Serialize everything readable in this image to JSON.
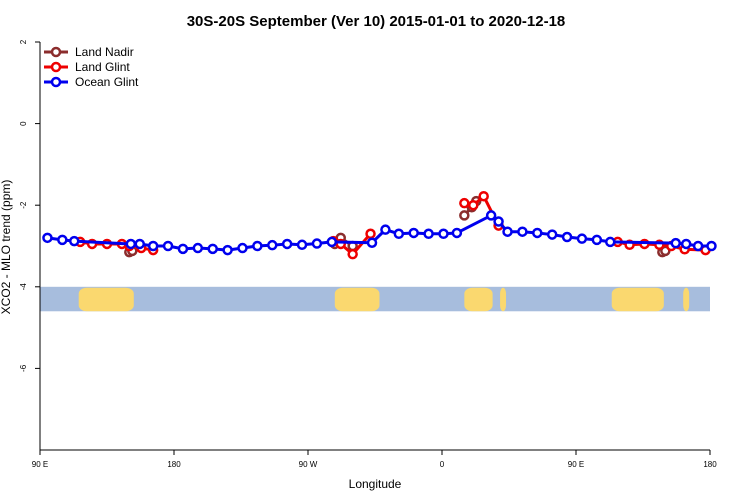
{
  "chart_data": {
    "type": "line",
    "title": "30S-20S September (Ver 10)   2015-01-01 to 2020-12-18",
    "xlabel": "Longitude",
    "ylabel": "XCO2 - MLO trend (ppm)",
    "xlim": [
      90,
      540
    ],
    "ylim": [
      -8,
      2
    ],
    "x_ticks": [
      {
        "value": 90,
        "label": "90 E"
      },
      {
        "value": 180,
        "label": "180"
      },
      {
        "value": 270,
        "label": "90 W"
      },
      {
        "value": 360,
        "label": "0"
      },
      {
        "value": 450,
        "label": "90 E"
      },
      {
        "value": 540,
        "label": "180"
      }
    ],
    "y_ticks": [
      {
        "value": 2,
        "label": "2"
      },
      {
        "value": 0,
        "label": "0"
      },
      {
        "value": -2,
        "label": "-2"
      },
      {
        "value": -4,
        "label": "-4"
      },
      {
        "value": -6,
        "label": "-6"
      }
    ],
    "legend": {
      "position": "top-left",
      "entries": [
        {
          "name": "Land Nadir",
          "color": "#8B2D2D"
        },
        {
          "name": "Land Glint",
          "color": "#EE0000"
        },
        {
          "name": "Ocean Glint",
          "color": "#0000EE"
        }
      ]
    },
    "map_strip": {
      "description_values": "land-ocean band between y -4 and -4.6",
      "y_top": -4.0,
      "y_bottom": -4.6,
      "ocean_color": "#A7BDDD",
      "land_color": "#FAD86F",
      "land_ranges": [
        [
          116,
          153
        ],
        [
          288,
          318
        ],
        [
          375,
          394
        ],
        [
          399,
          403
        ],
        [
          474,
          509
        ],
        [
          522,
          526
        ]
      ]
    },
    "series": [
      {
        "name": "Land Nadir",
        "color": "#8B2D2D",
        "segments": [
          [
            [
              150,
              -3.15
            ],
            [
              152,
              -3.12
            ]
          ],
          [
            [
              288,
              -2.95
            ],
            [
              292,
              -2.8
            ],
            [
              300,
              -3.0
            ]
          ],
          [
            [
              508,
              -3.15
            ],
            [
              510,
              -3.12
            ]
          ],
          [
            [
              375,
              -2.25
            ],
            [
              380,
              -2.05
            ],
            [
              383,
              -1.9
            ]
          ]
        ]
      },
      {
        "name": "Land Glint",
        "color": "#EE0000",
        "segments": [
          [
            [
              117,
              -2.9
            ],
            [
              125,
              -2.95
            ],
            [
              135,
              -2.95
            ],
            [
              145,
              -2.95
            ],
            [
              150,
              -3.0
            ],
            [
              158,
              -3.05
            ],
            [
              166,
              -3.1
            ]
          ],
          [
            [
              287,
              -2.88
            ],
            [
              292,
              -2.95
            ],
            [
              300,
              -3.2
            ],
            [
              312,
              -2.7
            ]
          ],
          [
            [
              375,
              -1.95
            ],
            [
              381,
              -2.0
            ],
            [
              388,
              -1.78
            ],
            [
              398,
              -2.5
            ]
          ],
          [
            [
              478,
              -2.9
            ],
            [
              486,
              -2.97
            ],
            [
              496,
              -2.95
            ],
            [
              506,
              -2.97
            ],
            [
              514,
              -3.0
            ],
            [
              523,
              -3.08
            ],
            [
              537,
              -3.1
            ]
          ]
        ]
      },
      {
        "name": "Ocean Glint",
        "color": "#0000EE",
        "segments": [
          [
            [
              95,
              -2.8
            ],
            [
              105,
              -2.85
            ],
            [
              113,
              -2.88
            ],
            [
              151,
              -2.95
            ],
            [
              157,
              -2.95
            ],
            [
              166,
              -3.0
            ],
            [
              176,
              -3.0
            ],
            [
              186,
              -3.07
            ],
            [
              196,
              -3.05
            ],
            [
              206,
              -3.07
            ],
            [
              216,
              -3.1
            ],
            [
              226,
              -3.05
            ],
            [
              236,
              -3.0
            ],
            [
              246,
              -2.98
            ],
            [
              256,
              -2.95
            ],
            [
              266,
              -2.97
            ],
            [
              276,
              -2.94
            ],
            [
              286,
              -2.9
            ],
            [
              313,
              -2.92
            ],
            [
              322,
              -2.6
            ],
            [
              331,
              -2.7
            ],
            [
              341,
              -2.68
            ],
            [
              351,
              -2.7
            ],
            [
              361,
              -2.7
            ],
            [
              370,
              -2.68
            ],
            [
              393,
              -2.25
            ],
            [
              398,
              -2.4
            ],
            [
              404,
              -2.65
            ],
            [
              414,
              -2.65
            ],
            [
              424,
              -2.68
            ],
            [
              434,
              -2.72
            ],
            [
              444,
              -2.78
            ],
            [
              454,
              -2.82
            ],
            [
              464,
              -2.85
            ],
            [
              473,
              -2.9
            ],
            [
              517,
              -2.93
            ],
            [
              524,
              -2.95
            ],
            [
              532,
              -3.0
            ],
            [
              541,
              -3.0
            ]
          ]
        ]
      }
    ]
  }
}
